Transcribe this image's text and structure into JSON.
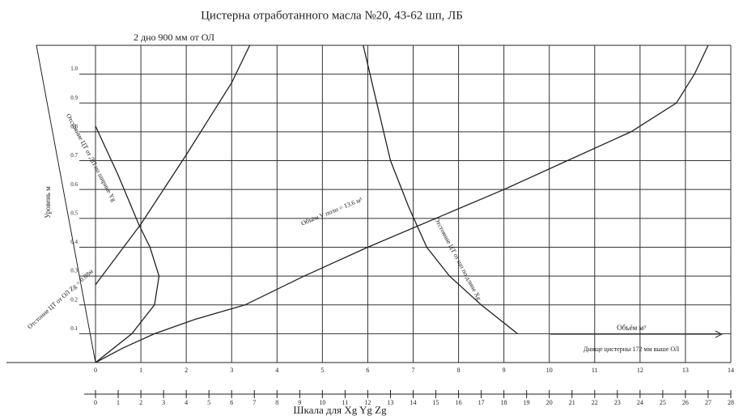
{
  "chart_data": {
    "type": "line",
    "title": "Цистерна отработанного масла №20,   43-62 шп, ЛБ",
    "subtitle": "2 дно 900 мм от ОЛ",
    "y_label": "Уровень м",
    "x_label": "Объём м³",
    "bottom_note": "Днище цистерны 172 мм выше ОЛ",
    "x2_label": "Шкала для Xg Yg Zg",
    "xlim": [
      0,
      14
    ],
    "xticks": [
      0,
      1,
      2,
      3,
      4,
      5,
      6,
      7,
      8,
      9,
      10,
      11,
      12,
      13,
      14
    ],
    "ylim": [
      0,
      1.1
    ],
    "yticks": [
      0.1,
      0.2,
      0.3,
      0.4,
      0.5,
      0.6,
      0.7,
      0.8,
      0.9,
      {
        "value": 1,
        "label": "1.0"
      }
    ],
    "x2lim": [
      0,
      28
    ],
    "x2ticks": [
      0,
      1,
      2,
      3,
      4,
      5,
      6,
      7,
      8,
      9,
      10,
      11,
      12,
      13,
      14,
      15,
      16,
      17,
      18,
      19,
      20,
      21,
      22,
      23,
      24,
      25,
      26,
      27,
      28
    ],
    "grid": true,
    "series": [
      {
        "name": "Объём V полн = 13.6 м³",
        "color": "#222",
        "x": [
          0,
          0.6,
          1.3,
          2.2,
          3.3,
          4.6,
          6.0,
          7.5,
          9.0,
          10.4,
          11.8,
          12.8,
          13.2,
          13.5
        ],
        "y": [
          0,
          0.05,
          0.1,
          0.15,
          0.2,
          0.3,
          0.4,
          0.5,
          0.6,
          0.7,
          0.8,
          0.9,
          1.0,
          1.1
        ]
      },
      {
        "name": "Отстоние ЦТ от ОЛ Zg = 0.08м",
        "color": "#222",
        "x": [
          0,
          1,
          2,
          3,
          3.4
        ],
        "y": [
          0.27,
          0.48,
          0.72,
          0.97,
          1.1
        ]
      },
      {
        "name": "Отстояние ЦТ от ДП по ширине Yg",
        "color": "#222",
        "x": [
          0,
          0.8,
          1.3,
          1.4,
          1.2,
          0.95,
          0.5,
          0
        ],
        "y": [
          0,
          0.1,
          0.2,
          0.3,
          0.4,
          0.48,
          0.65,
          0.82
        ]
      },
      {
        "name": "Отстояние ЦТ от шп по длине Xg",
        "color": "#222",
        "x": [
          5.9,
          6.2,
          6.5,
          6.9,
          7.3,
          7.8,
          8.5,
          9.3
        ],
        "y": [
          1.1,
          0.9,
          0.7,
          0.54,
          0.4,
          0.3,
          0.2,
          0.1
        ]
      }
    ]
  }
}
